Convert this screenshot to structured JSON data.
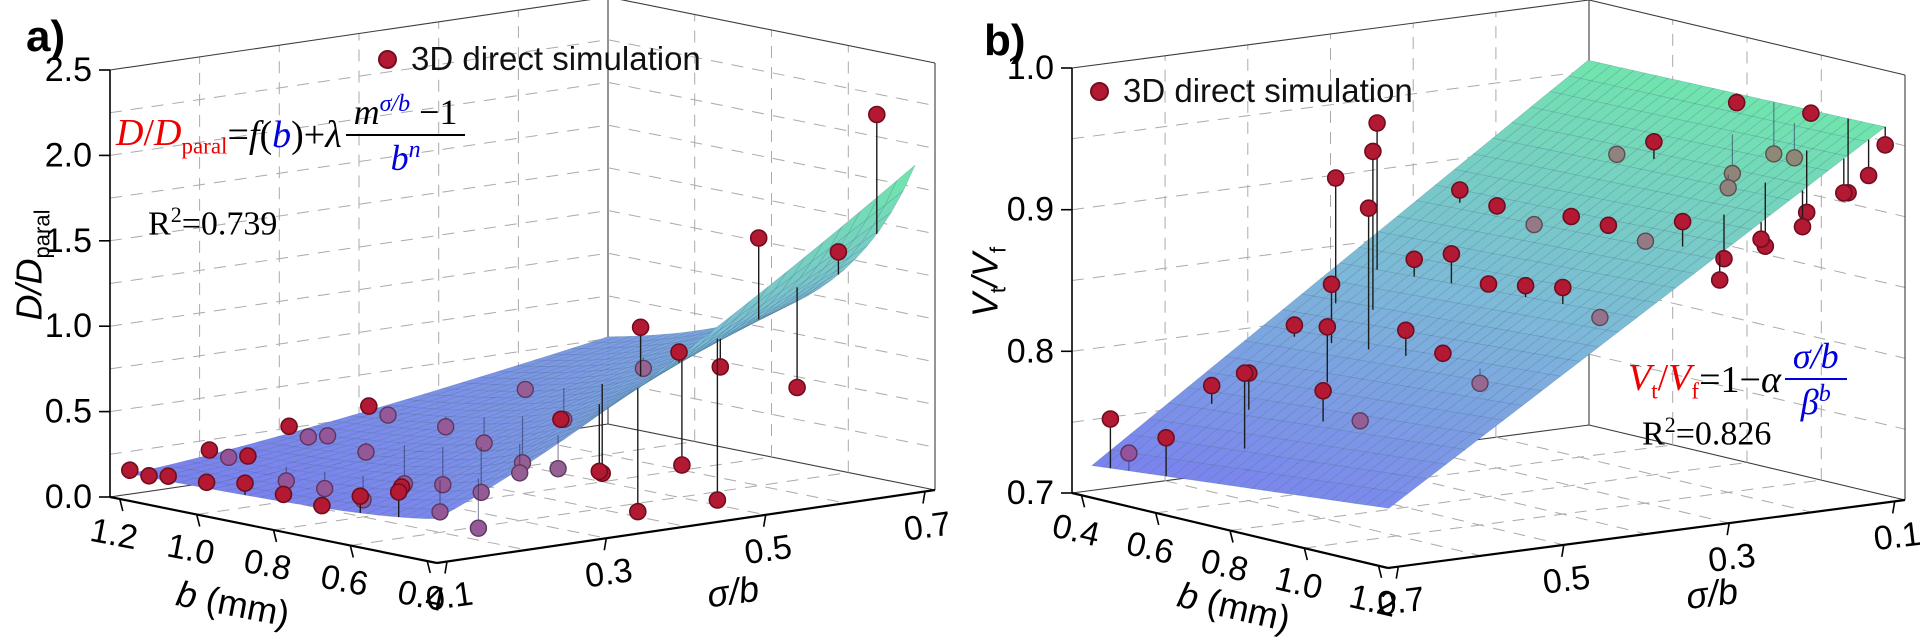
{
  "colors": {
    "background": "#ffffff",
    "dot_fill": "#b31933",
    "dot_edge": "#6f0d1f",
    "stem": "#1c1c1c",
    "surface_low": "#7b7ef0",
    "surface_mid": "#7db9d8",
    "surface_high": "#70e6ac",
    "grid": "#aaaaaa",
    "box_edge": "#3c3c3c",
    "axis": "#000000",
    "eq_red": "#ee0000",
    "eq_blue": "#0000dd"
  },
  "panels": [
    {
      "id": "a",
      "label": "a)",
      "legend": "3D direct simulation",
      "z_title": {
        "pre": "D",
        "slash": "/",
        "post": "D",
        "sub": "paral"
      },
      "x_title": {
        "var": "b",
        "rest": " (mm)"
      },
      "y_title": {
        "text": "σ/b"
      },
      "equation": {
        "lhs1": "D",
        "lhs_slash": "/",
        "lhs2": "D",
        "lhs_sub": "paral",
        "eq": "=",
        "f": "f",
        "op": "(",
        "b": "b",
        "cp": ")+",
        "lam": "λ",
        "num_m": "m",
        "num_sup": "σ/b",
        "num_tail": " −1",
        "den_b": "b",
        "den_sup": "n"
      },
      "r2": {
        "r": "R",
        "sup": "2",
        "val": "=0.739"
      }
    },
    {
      "id": "b",
      "label": "b)",
      "legend": "3D direct simulation",
      "z_title": {
        "pre": "V",
        "pre_sub": "t",
        "slash": "/",
        "post": "V",
        "post_sub": "f"
      },
      "x_title": {
        "var": "b",
        "rest": " (mm)"
      },
      "y_title": {
        "text": "σ/b"
      },
      "equation": {
        "v1": "V",
        "v1s": "t",
        "slash": "/",
        "v2": "V",
        "v2s": "f",
        "eq": " =1−",
        "alpha": "α",
        "num": "σ/b",
        "den": "β",
        "den_sup": "b"
      },
      "r2": {
        "r": "R",
        "sup": "2",
        "val": "=0.826"
      }
    }
  ],
  "chart_data": [
    {
      "type": "scatter",
      "subtype": "3d-scatter-with-fitted-surface",
      "title": "",
      "xlabel": "b (mm)",
      "ylabel": "σ/b",
      "zlabel": "D/D_paral",
      "legend": "3D direct simulation",
      "r2": 0.739,
      "fit_formula": "D/D_paral = f(b) + λ·(m^(σ/b) − 1)/b^n",
      "x_range": [
        1.2,
        0.4
      ],
      "y_range": [
        0.1,
        0.7
      ],
      "z_range": [
        0.0,
        2.5
      ],
      "x_ticks": [
        1.2,
        1.0,
        0.8,
        0.6,
        0.4
      ],
      "y_ticks": [
        0.1,
        0.3,
        0.5,
        0.7
      ],
      "z_ticks": [
        0.0,
        0.5,
        1.0,
        1.5,
        2.0,
        2.5
      ],
      "grid": {
        "x": 0.2,
        "y": 0.1,
        "z": 0.25
      },
      "surface": {
        "kind": "power_ridge",
        "base": 0.14,
        "amp": 1.76,
        "pow": 1.25,
        "r0": 0.0833,
        "r1": 1.75
      },
      "color_norm": [
        0.1,
        1.85
      ],
      "points": [
        [
          1.2,
          0.1,
          0.16,
          "r"
        ],
        [
          1.2,
          0.2,
          0.21,
          "r"
        ],
        [
          1.2,
          0.3,
          0.28,
          "r"
        ],
        [
          1.2,
          0.4,
          0.33,
          "r"
        ],
        [
          1.15,
          0.1,
          0.15,
          "r"
        ],
        [
          1.15,
          0.2,
          0.19,
          "p"
        ],
        [
          1.15,
          0.3,
          0.24,
          "p"
        ],
        [
          1.15,
          0.4,
          0.3,
          "p"
        ],
        [
          1.1,
          0.1,
          0.17,
          "r"
        ],
        [
          1.1,
          0.2,
          0.22,
          "r"
        ],
        [
          1.1,
          0.3,
          0.27,
          "p"
        ],
        [
          1.0,
          0.1,
          0.18,
          "r"
        ],
        [
          1.0,
          0.2,
          0.12,
          "p"
        ],
        [
          1.0,
          0.3,
          0.22,
          "p"
        ],
        [
          1.0,
          0.4,
          0.3,
          "p"
        ],
        [
          1.0,
          0.5,
          0.45,
          "p"
        ],
        [
          0.9,
          0.1,
          0.22,
          "r"
        ],
        [
          0.9,
          0.2,
          0.12,
          "p"
        ],
        [
          0.9,
          0.3,
          0.08,
          "p"
        ],
        [
          0.9,
          0.4,
          0.25,
          "p"
        ],
        [
          0.9,
          0.5,
          0.32,
          "p"
        ],
        [
          0.9,
          0.6,
          0.55,
          "p"
        ],
        [
          0.8,
          0.1,
          0.2,
          "r"
        ],
        [
          0.8,
          0.2,
          0.1,
          "p"
        ],
        [
          0.8,
          0.3,
          0.12,
          "p"
        ],
        [
          0.8,
          0.4,
          0.18,
          "p"
        ],
        [
          0.8,
          0.5,
          0.05,
          "r"
        ],
        [
          0.8,
          0.6,
          0.03,
          "r"
        ],
        [
          0.7,
          0.1,
          0.18,
          "r"
        ],
        [
          0.7,
          0.2,
          0.22,
          "r"
        ],
        [
          0.7,
          0.3,
          0.12,
          "p"
        ],
        [
          0.7,
          0.4,
          0.48,
          "r"
        ],
        [
          0.7,
          0.5,
          0.95,
          "r"
        ],
        [
          0.7,
          0.6,
          0.65,
          "r"
        ],
        [
          0.6,
          0.1,
          0.28,
          "r"
        ],
        [
          0.6,
          0.2,
          0.12,
          "p"
        ],
        [
          0.6,
          0.3,
          0.28,
          "p"
        ],
        [
          0.6,
          0.4,
          0.22,
          "r"
        ],
        [
          0.6,
          0.5,
          0.85,
          "r"
        ],
        [
          0.6,
          0.6,
          1.45,
          "r"
        ],
        [
          0.6,
          0.7,
          1.3,
          "r"
        ],
        [
          0.5,
          0.1,
          0.35,
          "r"
        ],
        [
          0.5,
          0.2,
          0.07,
          "p"
        ],
        [
          0.5,
          0.3,
          0.35,
          "p"
        ],
        [
          0.5,
          0.4,
          0.03,
          "r"
        ],
        [
          0.5,
          0.5,
          0.03,
          "r"
        ],
        [
          0.5,
          0.6,
          0.62,
          "r"
        ],
        [
          0.5,
          0.7,
          2.15,
          "r"
        ]
      ]
    },
    {
      "type": "scatter",
      "subtype": "3d-scatter-with-fitted-plane",
      "title": "",
      "xlabel": "b (mm)",
      "ylabel": "σ/b",
      "zlabel": "V_t/V_f",
      "legend": "3D direct simulation",
      "r2": 0.826,
      "fit_formula": "V_t/V_f = 1 − α·(σ/b)/β^b",
      "x_range": [
        0.4,
        1.2
      ],
      "y_range": [
        0.7,
        0.1
      ],
      "z_range": [
        0.7,
        1.0
      ],
      "x_ticks": [
        0.4,
        0.6,
        0.8,
        1.0,
        1.2
      ],
      "y_ticks": [
        0.7,
        0.5,
        0.3,
        0.1
      ],
      "z_ticks": [
        0.7,
        0.8,
        0.9,
        1.0
      ],
      "grid": {
        "x": 0.2,
        "y": 0.1,
        "z": 0.05
      },
      "surface": {
        "kind": "plane",
        "intercept": 1.0,
        "slope0": 0.4,
        "slope_b": 0.035,
        "b_ref": 0.4
      },
      "color_norm": [
        0.715,
        0.965
      ],
      "points": [
        [
          0.45,
          0.7,
          0.756,
          "r"
        ],
        [
          0.5,
          0.7,
          0.735,
          "p"
        ],
        [
          0.5,
          0.6,
          0.775,
          "r"
        ],
        [
          0.5,
          0.5,
          0.81,
          "r"
        ],
        [
          0.5,
          0.45,
          0.91,
          "r"
        ],
        [
          0.5,
          0.4,
          0.945,
          "r"
        ],
        [
          0.5,
          0.3,
          0.89,
          "r"
        ],
        [
          0.6,
          0.7,
          0.752,
          "r"
        ],
        [
          0.6,
          0.6,
          0.79,
          "r"
        ],
        [
          0.6,
          0.5,
          0.845,
          "r"
        ],
        [
          0.6,
          0.45,
          0.935,
          "r"
        ],
        [
          0.6,
          0.4,
          0.855,
          "r"
        ],
        [
          0.6,
          0.3,
          0.885,
          "r"
        ],
        [
          0.7,
          0.65,
          0.8,
          "r"
        ],
        [
          0.7,
          0.55,
          0.825,
          "r"
        ],
        [
          0.7,
          0.5,
          0.905,
          "r"
        ],
        [
          0.7,
          0.4,
          0.865,
          "r"
        ],
        [
          0.7,
          0.3,
          0.878,
          "p"
        ],
        [
          0.7,
          0.2,
          0.92,
          "p"
        ],
        [
          0.8,
          0.6,
          0.79,
          "r"
        ],
        [
          0.8,
          0.5,
          0.825,
          "r"
        ],
        [
          0.8,
          0.4,
          0.85,
          "r"
        ],
        [
          0.8,
          0.3,
          0.89,
          "r"
        ],
        [
          0.8,
          0.2,
          0.935,
          "r"
        ],
        [
          0.8,
          0.1,
          0.955,
          "r"
        ],
        [
          0.9,
          0.6,
          0.775,
          "p"
        ],
        [
          0.9,
          0.5,
          0.815,
          "r"
        ],
        [
          0.9,
          0.4,
          0.855,
          "r"
        ],
        [
          0.9,
          0.3,
          0.89,
          "r"
        ],
        [
          0.9,
          0.15,
          0.915,
          "p"
        ],
        [
          0.9,
          0.1,
          0.925,
          "p"
        ],
        [
          1.0,
          0.5,
          0.8,
          "p"
        ],
        [
          1.0,
          0.4,
          0.86,
          "r"
        ],
        [
          1.0,
          0.3,
          0.885,
          "p"
        ],
        [
          1.0,
          0.2,
          0.915,
          "p"
        ],
        [
          1.0,
          0.12,
          0.93,
          "p"
        ],
        [
          1.0,
          0.1,
          0.96,
          "r"
        ],
        [
          1.1,
          0.4,
          0.845,
          "p"
        ],
        [
          1.1,
          0.3,
          0.905,
          "r"
        ],
        [
          1.1,
          0.25,
          0.875,
          "r"
        ],
        [
          1.1,
          0.2,
          0.88,
          "r"
        ],
        [
          1.1,
          0.15,
          0.9,
          "r"
        ],
        [
          1.1,
          0.1,
          0.91,
          "r"
        ],
        [
          1.2,
          0.3,
          0.87,
          "r"
        ],
        [
          1.2,
          0.25,
          0.895,
          "r"
        ],
        [
          1.2,
          0.2,
          0.9,
          "r"
        ],
        [
          1.2,
          0.15,
          0.92,
          "r"
        ],
        [
          1.2,
          0.12,
          0.93,
          "r"
        ],
        [
          1.2,
          0.1,
          0.95,
          "r"
        ]
      ]
    }
  ]
}
